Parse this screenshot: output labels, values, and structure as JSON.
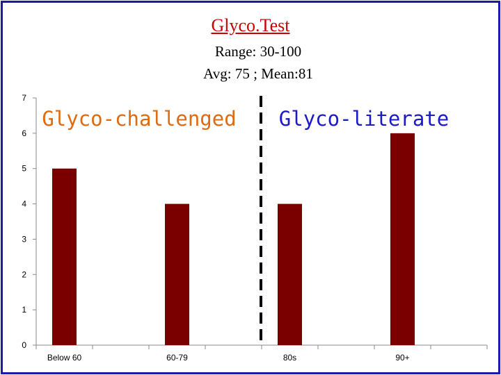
{
  "title": "Glyco.Test",
  "subtitle_range": "Range: 30-100",
  "subtitle_stats": "Avg: 75 ; Mean:81",
  "colors": {
    "frame": "#1a1aa6",
    "title": "#cc0000",
    "bar": "#7a0000",
    "zone_left": "#e06a10",
    "zone_right": "#1a1acc"
  },
  "chart_data": {
    "type": "bar",
    "title": "",
    "xlabel": "",
    "ylabel": "",
    "categories": [
      "Below 60",
      "60-79",
      "80s",
      "90+"
    ],
    "values": [
      5,
      4,
      4,
      6
    ],
    "ylim": [
      0,
      7
    ],
    "yticks": [
      0,
      1,
      2,
      3,
      4,
      5,
      6,
      7
    ],
    "grid": false,
    "annotations": [
      {
        "text": "Glyco-challenged",
        "side": "left"
      },
      {
        "text": "Glyco-literate",
        "side": "right"
      }
    ]
  }
}
